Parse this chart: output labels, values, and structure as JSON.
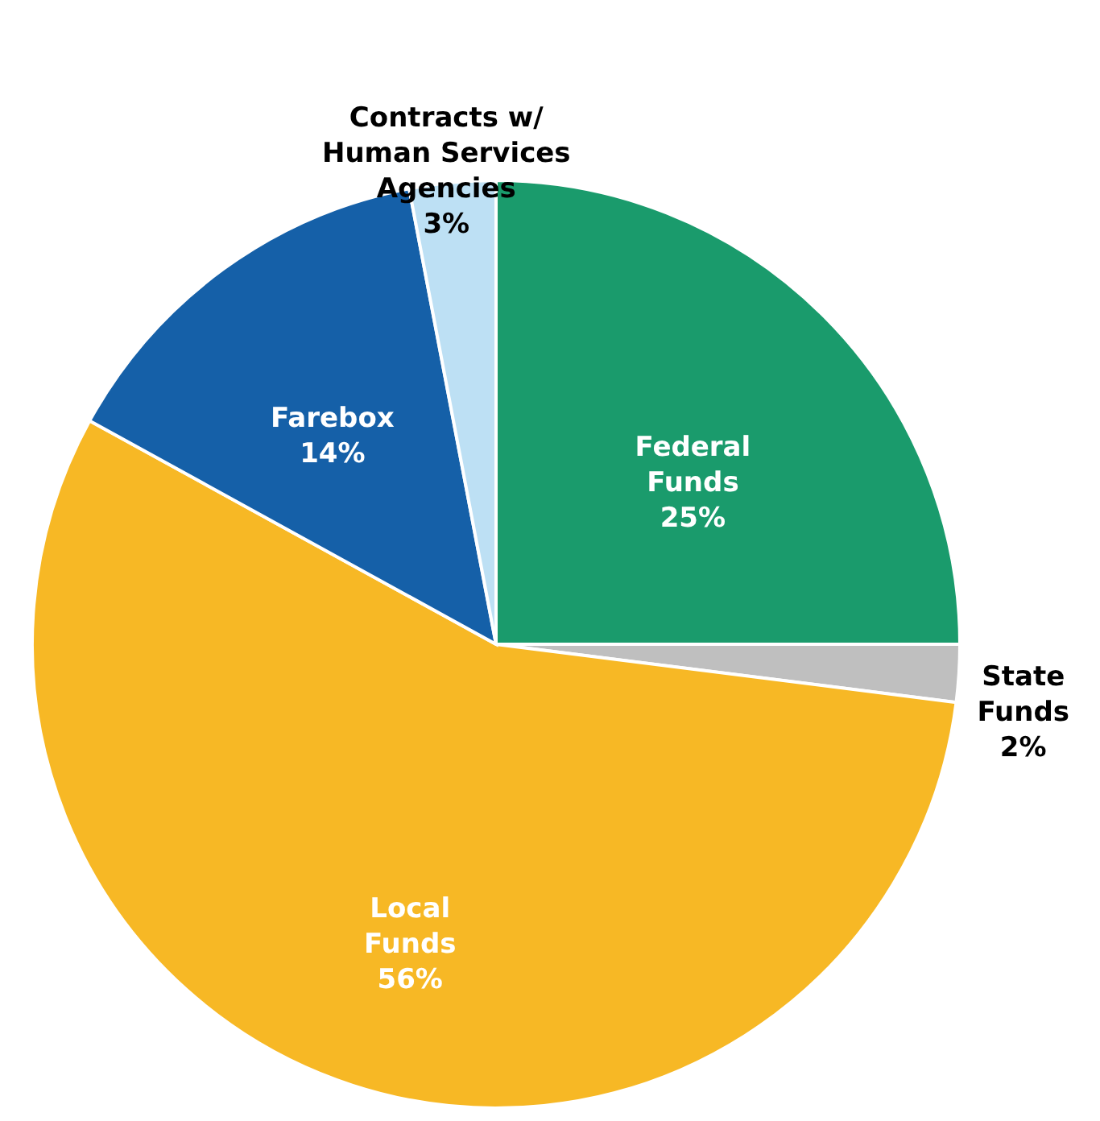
{
  "chart_data": {
    "type": "pie",
    "categories": [
      "Federal Funds",
      "State Funds",
      "Local Funds",
      "Farebox",
      "Contracts w/ Human Services Agencies"
    ],
    "values": [
      25,
      2,
      56,
      14,
      3
    ],
    "value_labels": [
      "25%",
      "2%",
      "56%",
      "14%",
      "3%"
    ],
    "colors": [
      "#1a9b6c",
      "#bfbfbf",
      "#f7b825",
      "#1560a8",
      "#bde0f4"
    ]
  }
}
